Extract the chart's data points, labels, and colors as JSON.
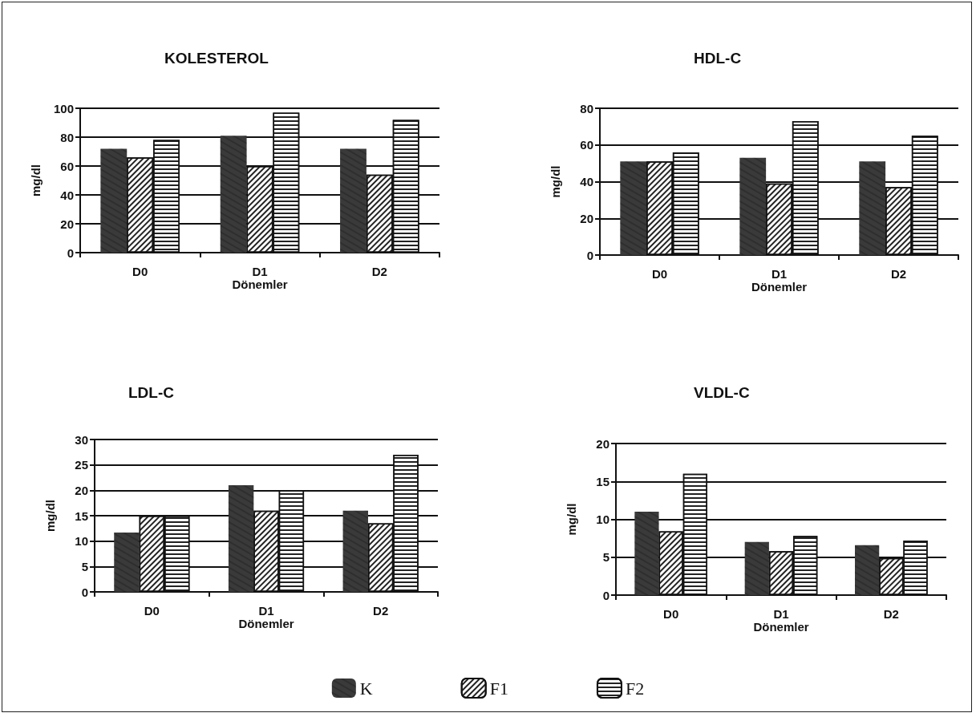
{
  "chart_data": [
    {
      "type": "bar",
      "title": "KOLESTEROL",
      "xlabel": "Dönemler",
      "ylabel": "mg/dl",
      "categories": [
        "D0",
        "D1",
        "D2"
      ],
      "ylim": [
        0,
        100
      ],
      "yticks": [
        0,
        20,
        40,
        60,
        80,
        100
      ],
      "grid": "y",
      "legend": "bottom",
      "series": [
        {
          "name": "K",
          "color": "#3a3a3a",
          "values": [
            72,
            81,
            72
          ]
        },
        {
          "name": "F1",
          "color": "#ffffff",
          "values": [
            66,
            60,
            54
          ]
        },
        {
          "name": "F2",
          "color": "#ffffff",
          "values": [
            78,
            97,
            92
          ]
        }
      ]
    },
    {
      "type": "bar",
      "title": "HDL-C",
      "xlabel": "Dönemler",
      "ylabel": "mg/dl",
      "categories": [
        "D0",
        "D1",
        "D2"
      ],
      "ylim": [
        0,
        80
      ],
      "yticks": [
        0,
        20,
        40,
        60,
        80
      ],
      "grid": "y",
      "legend": "bottom",
      "series": [
        {
          "name": "K",
          "color": "#3a3a3a",
          "values": [
            51,
            53,
            51
          ]
        },
        {
          "name": "F1",
          "color": "#ffffff",
          "values": [
            51,
            39,
            37
          ]
        },
        {
          "name": "F2",
          "color": "#ffffff",
          "values": [
            56,
            73,
            65
          ]
        }
      ]
    },
    {
      "type": "bar",
      "title": "LDL-C",
      "xlabel": "Dönemler",
      "ylabel": "mg/dl",
      "categories": [
        "D0",
        "D1",
        "D2"
      ],
      "ylim": [
        0,
        30
      ],
      "yticks": [
        0,
        5,
        10,
        15,
        20,
        25,
        30
      ],
      "grid": "y",
      "legend": "bottom",
      "series": [
        {
          "name": "K",
          "color": "#3a3a3a",
          "values": [
            11.7,
            21,
            16
          ]
        },
        {
          "name": "F1",
          "color": "#ffffff",
          "values": [
            15,
            16,
            13.5
          ]
        },
        {
          "name": "F2",
          "color": "#ffffff",
          "values": [
            15,
            20,
            27
          ]
        }
      ]
    },
    {
      "type": "bar",
      "title": "VLDL-C",
      "xlabel": "Dönemler",
      "ylabel": "mg/dl",
      "categories": [
        "D0",
        "D1",
        "D2"
      ],
      "ylim": [
        0,
        20
      ],
      "yticks": [
        0,
        5,
        10,
        15,
        20
      ],
      "grid": "y",
      "legend": "bottom",
      "series": [
        {
          "name": "K",
          "color": "#3a3a3a",
          "values": [
            11,
            7,
            6.6
          ]
        },
        {
          "name": "F1",
          "color": "#ffffff",
          "values": [
            8.4,
            5.8,
            4.9
          ]
        },
        {
          "name": "F2",
          "color": "#ffffff",
          "values": [
            16,
            7.8,
            7.2
          ]
        }
      ]
    }
  ]
}
